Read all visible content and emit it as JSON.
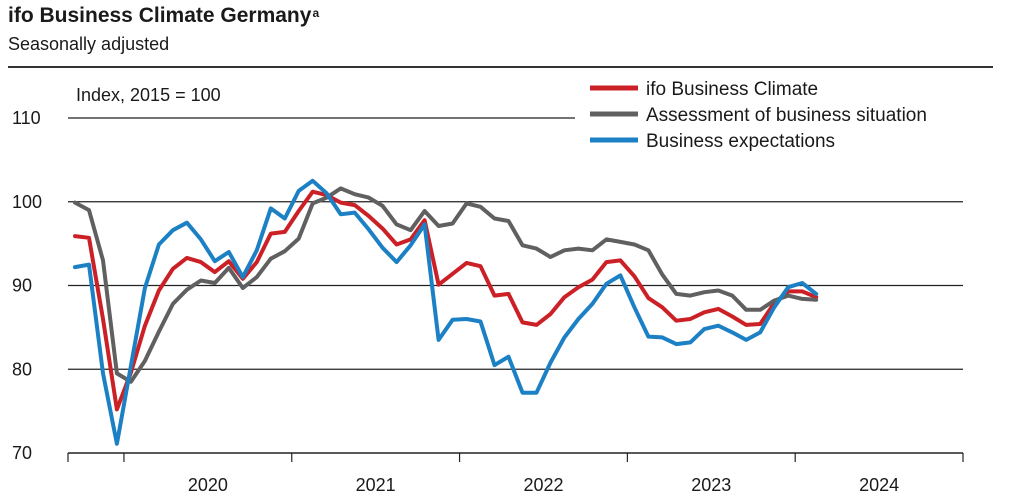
{
  "chart_data": {
    "type": "line",
    "title": "ifo Business Climate Germany",
    "title_superscript": "a",
    "subtitle": "Seasonally adjusted",
    "unit_label": "Index, 2015 = 100",
    "ylim": [
      70,
      110
    ],
    "y_ticks": [
      70,
      80,
      90,
      100,
      110
    ],
    "grid": "horizontal",
    "legend_position": "top-right",
    "x_start": "2019-09",
    "x_end": "2024-12",
    "x_year_labels": [
      "2020",
      "2021",
      "2022",
      "2023",
      "2024"
    ],
    "series": [
      {
        "name": "ifo Business Climate",
        "color": "#cc2027",
        "values": [
          95.9,
          95.7,
          86.0,
          75.2,
          79.6,
          85.2,
          89.4,
          92.0,
          93.3,
          92.8,
          91.6,
          92.9,
          90.8,
          92.8,
          96.2,
          96.4,
          98.9,
          101.2,
          100.8,
          99.9,
          99.6,
          98.3,
          96.8,
          94.9,
          95.5,
          97.8,
          90.1,
          91.4,
          92.7,
          92.3,
          88.8,
          89.0,
          85.6,
          85.3,
          86.6,
          88.6,
          89.8,
          90.7,
          92.8,
          93.0,
          91.1,
          88.5,
          87.4,
          85.8,
          86.0,
          86.8,
          87.2,
          86.3,
          85.3,
          85.4,
          87.9,
          89.3,
          89.3,
          88.6
        ]
      },
      {
        "name": "Assessment of business situation",
        "color": "#606060",
        "values": [
          99.9,
          99.0,
          93.0,
          79.5,
          78.5,
          81.0,
          84.5,
          87.8,
          89.5,
          90.6,
          90.3,
          92.1,
          89.7,
          91.0,
          93.2,
          94.1,
          95.6,
          99.8,
          100.5,
          101.6,
          100.9,
          100.5,
          99.5,
          97.3,
          96.6,
          98.9,
          97.1,
          97.4,
          99.8,
          99.4,
          98.0,
          97.7,
          94.8,
          94.4,
          93.4,
          94.2,
          94.4,
          94.2,
          95.5,
          95.2,
          94.9,
          94.2,
          91.3,
          89.0,
          88.8,
          89.2,
          89.4,
          88.8,
          87.1,
          87.1,
          88.2,
          88.8,
          88.4,
          88.3
        ]
      },
      {
        "name": "Business expectations",
        "color": "#1c80c4",
        "values": [
          92.2,
          92.5,
          79.5,
          71.1,
          80.4,
          89.7,
          94.9,
          96.6,
          97.5,
          95.5,
          92.9,
          94.0,
          91.0,
          94.2,
          99.2,
          98.0,
          101.3,
          102.5,
          101.0,
          98.5,
          98.7,
          96.7,
          94.5,
          92.8,
          94.8,
          97.3,
          83.5,
          85.9,
          86.0,
          85.7,
          80.5,
          81.5,
          77.2,
          77.2,
          80.8,
          83.8,
          86.0,
          87.8,
          90.2,
          91.2,
          87.4,
          83.9,
          83.8,
          83.0,
          83.2,
          84.8,
          85.2,
          84.4,
          83.5,
          84.4,
          87.4,
          89.8,
          90.3,
          89.0
        ]
      }
    ]
  }
}
